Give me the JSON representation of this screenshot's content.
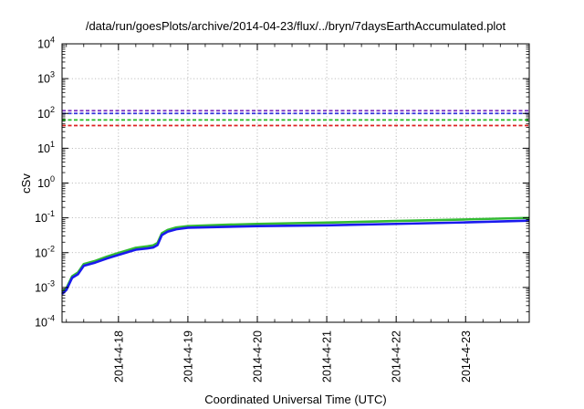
{
  "chart_data": {
    "type": "line",
    "title": "/data/run/goesPlots/archive/2014-04-23/flux/../bryn/7daysEarthAccumulated.plot",
    "xlabel": "Coordinated Universal Time (UTC)",
    "ylabel": "cSv",
    "y_scale": "log",
    "ylim": [
      0.0001,
      10000
    ],
    "y_ticks": [
      {
        "base": "10",
        "exp": "4",
        "value": 10000
      },
      {
        "base": "10",
        "exp": "3",
        "value": 1000
      },
      {
        "base": "10",
        "exp": "2",
        "value": 100
      },
      {
        "base": "10",
        "exp": "1",
        "value": 10
      },
      {
        "base": "10",
        "exp": "0",
        "value": 1
      },
      {
        "base": "10",
        "exp": "-1",
        "value": 0.1
      },
      {
        "base": "10",
        "exp": "-2",
        "value": 0.01
      },
      {
        "base": "10",
        "exp": "-3",
        "value": 0.001
      },
      {
        "base": "10",
        "exp": "-4",
        "value": 0.0001
      }
    ],
    "xlim": [
      "2014-04-17 04:30",
      "2014-04-23 22:00"
    ],
    "x_ticks": [
      "2014-4-18",
      "2014-4-19",
      "2014-4-20",
      "2014-4-21",
      "2014-4-22",
      "2014-4-23"
    ],
    "grid": true,
    "thresholds": [
      {
        "color": "#7b2fbf",
        "value": 120
      },
      {
        "color": "#3333dd",
        "value": 100
      },
      {
        "color": "#22bb22",
        "value": 65
      },
      {
        "color": "#dd2222",
        "value": 45
      }
    ],
    "series": [
      {
        "color": "#33bb33",
        "x": [
          "2014-04-17 04:30",
          "2014-04-17 06:00",
          "2014-04-17 08:00",
          "2014-04-17 10:00",
          "2014-04-17 12:00",
          "2014-04-17 16:00",
          "2014-04-17 20:00",
          "2014-04-18 00:00",
          "2014-04-18 03:00",
          "2014-04-18 06:00",
          "2014-04-18 10:00",
          "2014-04-18 12:00",
          "2014-04-18 13:30",
          "2014-04-18 15:00",
          "2014-04-18 17:00",
          "2014-04-18 20:00",
          "2014-04-19 00:00",
          "2014-04-19 12:00",
          "2014-04-20 00:00",
          "2014-04-21 00:00",
          "2014-04-22 00:00",
          "2014-04-23 00:00",
          "2014-04-23 22:00"
        ],
        "y": [
          0.00075,
          0.00095,
          0.0021,
          0.0027,
          0.0047,
          0.0058,
          0.0077,
          0.0098,
          0.0116,
          0.0138,
          0.0152,
          0.0162,
          0.019,
          0.036,
          0.045,
          0.053,
          0.058,
          0.063,
          0.067,
          0.073,
          0.081,
          0.09,
          0.1
        ]
      },
      {
        "color": "#1a1aee",
        "x": [
          "2014-04-17 04:30",
          "2014-04-17 06:00",
          "2014-04-17 08:00",
          "2014-04-17 10:00",
          "2014-04-17 12:00",
          "2014-04-17 16:00",
          "2014-04-17 20:00",
          "2014-04-18 00:00",
          "2014-04-18 03:00",
          "2014-04-18 06:00",
          "2014-04-18 10:00",
          "2014-04-18 12:00",
          "2014-04-18 13:30",
          "2014-04-18 15:00",
          "2014-04-18 17:00",
          "2014-04-18 20:00",
          "2014-04-19 00:00",
          "2014-04-19 12:00",
          "2014-04-20 00:00",
          "2014-04-21 00:00",
          "2014-04-22 00:00",
          "2014-04-23 00:00",
          "2014-04-23 22:00"
        ],
        "y": [
          0.00065,
          0.00085,
          0.0019,
          0.0024,
          0.0042,
          0.0052,
          0.0068,
          0.0086,
          0.0102,
          0.0122,
          0.0133,
          0.0141,
          0.0166,
          0.032,
          0.04,
          0.047,
          0.052,
          0.055,
          0.058,
          0.061,
          0.067,
          0.074,
          0.083
        ]
      }
    ]
  }
}
